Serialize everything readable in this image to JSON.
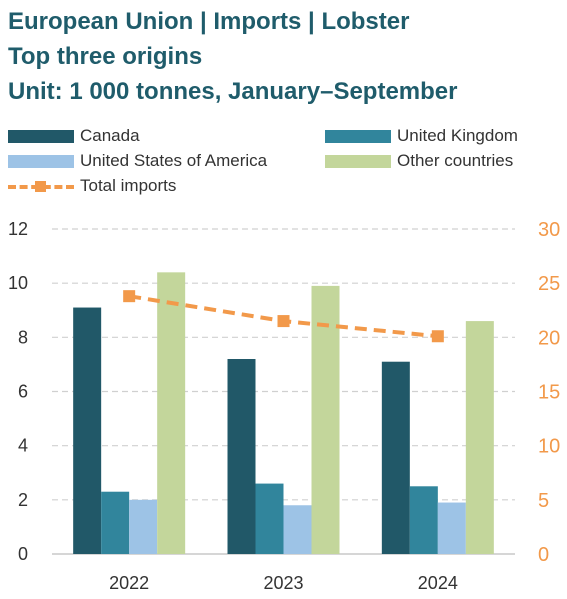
{
  "header": {
    "title_line1": "European Union | Imports | Lobster",
    "title_line2": "Top three origins",
    "title_line3": "Unit: 1 000 tonnes, January–September"
  },
  "legend": {
    "items": [
      {
        "label": "Canada",
        "color": "#215868"
      },
      {
        "label": "United Kingdom",
        "color": "#31859c"
      },
      {
        "label": "United States of America",
        "color": "#9dc3e6"
      },
      {
        "label": "Other countries",
        "color": "#c3d69b"
      }
    ],
    "total_label": "Total imports",
    "total_color": "#f2994a"
  },
  "chart_data": {
    "type": "bar",
    "categories": [
      "2022",
      "2023",
      "2024"
    ],
    "series": [
      {
        "name": "Canada",
        "values": [
          9.1,
          7.2,
          7.1
        ],
        "color": "#215868"
      },
      {
        "name": "United Kingdom",
        "values": [
          2.3,
          2.6,
          2.5
        ],
        "color": "#31859c"
      },
      {
        "name": "United States of America",
        "values": [
          2.0,
          1.8,
          1.9
        ],
        "color": "#9dc3e6"
      },
      {
        "name": "Other countries",
        "values": [
          10.4,
          9.9,
          8.6
        ],
        "color": "#c3d69b"
      }
    ],
    "line_series": {
      "name": "Total imports",
      "values": [
        23.8,
        21.5,
        20.1
      ],
      "color": "#f2994a",
      "axis": "right"
    },
    "ylim_left": [
      0,
      12
    ],
    "yticks_left": [
      "0",
      "2",
      "4",
      "6",
      "8",
      "10",
      "12"
    ],
    "ylim_right": [
      0,
      30
    ],
    "yticks_right": [
      "0",
      "5",
      "10",
      "15",
      "20",
      "25",
      "30"
    ],
    "grid": true,
    "legend_position": "top"
  }
}
